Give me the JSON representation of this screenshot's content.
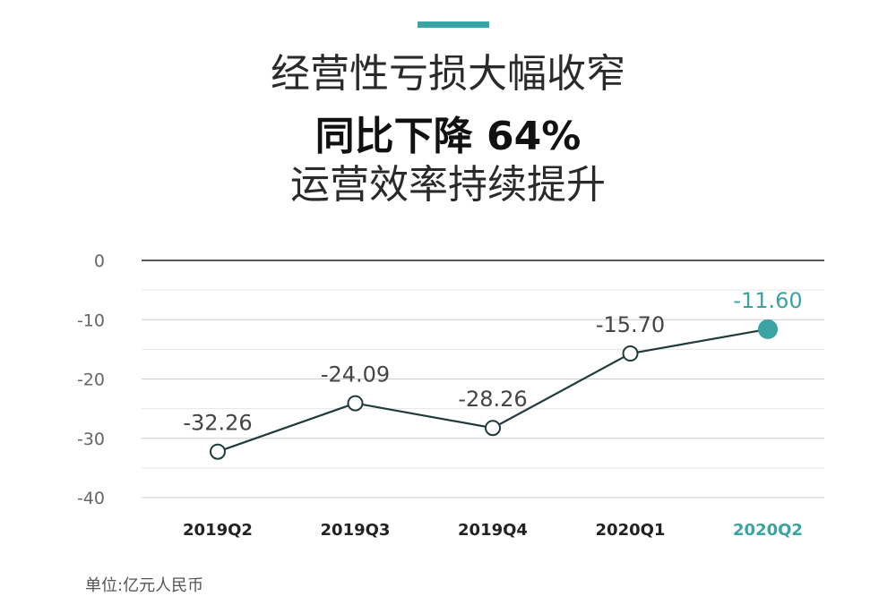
{
  "title": {
    "line1": "经营性亏损大幅收窄",
    "line2": "同比下降 64%",
    "line3": "运营效率持续提升"
  },
  "unit_note": "单位:亿元人民币",
  "colors": {
    "accent": "#3aa3a3",
    "line": "#1f3b3b",
    "axis_text": "#666666",
    "grid": "#cccccc",
    "zero_line": "#222222"
  },
  "chart_data": {
    "type": "line",
    "categories": [
      "2019Q2",
      "2019Q3",
      "2019Q4",
      "2020Q1",
      "2020Q2"
    ],
    "values": [
      -32.26,
      -24.09,
      -28.26,
      -15.7,
      -11.6
    ],
    "value_labels": [
      "-32.26",
      "-24.09",
      "-28.26",
      "-15.70",
      "-11.60"
    ],
    "highlight_index": 4,
    "ylim": [
      -40,
      0
    ],
    "y_ticks": [
      0,
      -10,
      -20,
      -30,
      -40
    ],
    "y_tick_labels": [
      "0",
      "-10",
      "-20",
      "-30",
      "-40"
    ],
    "grid": true,
    "title": "",
    "xlabel": "",
    "ylabel": ""
  }
}
